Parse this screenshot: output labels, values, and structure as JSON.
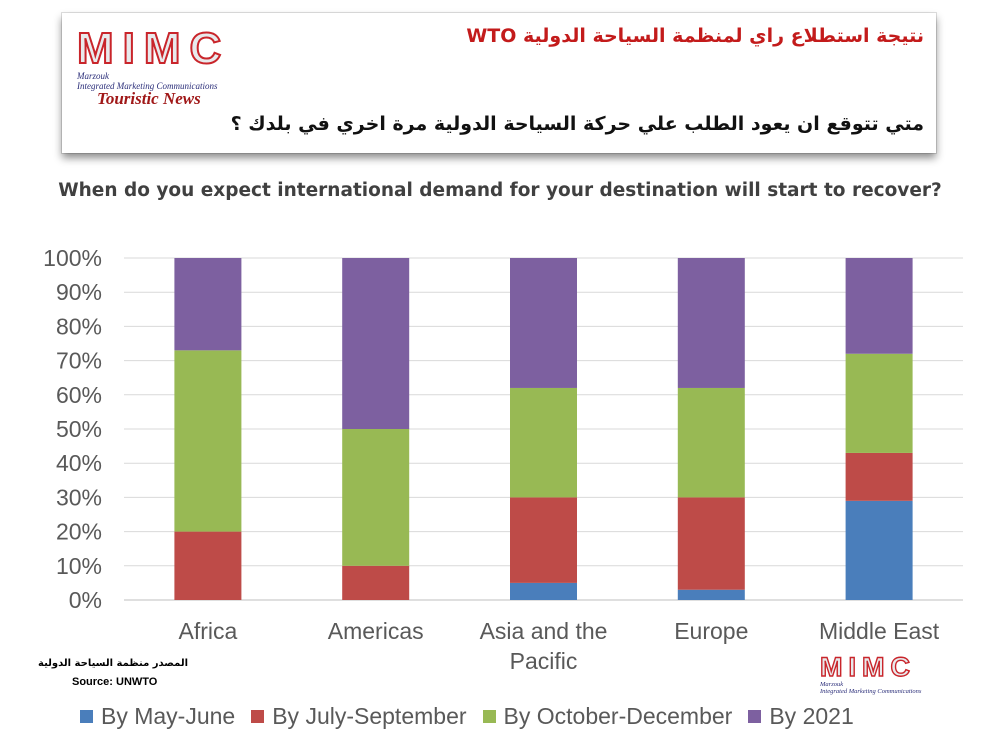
{
  "banner": {
    "logo_word": "MIMC",
    "logo_sub1": "Marzouk",
    "logo_sub2": "Integrated Marketing Communications",
    "touristic_news": "Touristic News",
    "arabic_title": "نتيجة استطلاع راي لمنظمة السياحة الدولية WTO",
    "arabic_question": "متي تتوقع ان يعود الطلب علي حركة السياحة الدولية مرة اخري في بلدك ؟"
  },
  "question": "When do you expect international demand for your destination will start to recover?",
  "source": {
    "arabic": "المصدر منظمة السياحة الدولية",
    "english": "Source: UNWTO"
  },
  "logo2": {
    "word": "MIMC",
    "sub1": "Marzouk",
    "sub2": "Integrated Marketing Communications"
  },
  "chart_data": {
    "type": "bar",
    "stacked": true,
    "categories": [
      "Africa",
      "Americas",
      "Asia and the Pacific",
      "Europe",
      "Middle East"
    ],
    "category_lines": [
      [
        "Africa"
      ],
      [
        "Americas"
      ],
      [
        "Asia and the",
        "Pacific"
      ],
      [
        "Europe"
      ],
      [
        "Middle East"
      ]
    ],
    "series": [
      {
        "name": "By May-June",
        "color": "#4a7ebb",
        "values": [
          0,
          0,
          5,
          3,
          29
        ]
      },
      {
        "name": "By July-September",
        "color": "#be4b48",
        "values": [
          20,
          10,
          25,
          27,
          14
        ]
      },
      {
        "name": "By October-December",
        "color": "#98b954",
        "values": [
          53,
          40,
          32,
          32,
          29
        ]
      },
      {
        "name": "By 2021",
        "color": "#7d60a0",
        "values": [
          27,
          50,
          38,
          38,
          28
        ]
      }
    ],
    "ylim": [
      0,
      100
    ],
    "yticks": [
      "0%",
      "10%",
      "20%",
      "30%",
      "40%",
      "50%",
      "60%",
      "70%",
      "80%",
      "90%",
      "100%"
    ],
    "grid": true,
    "legend": "bottom"
  }
}
